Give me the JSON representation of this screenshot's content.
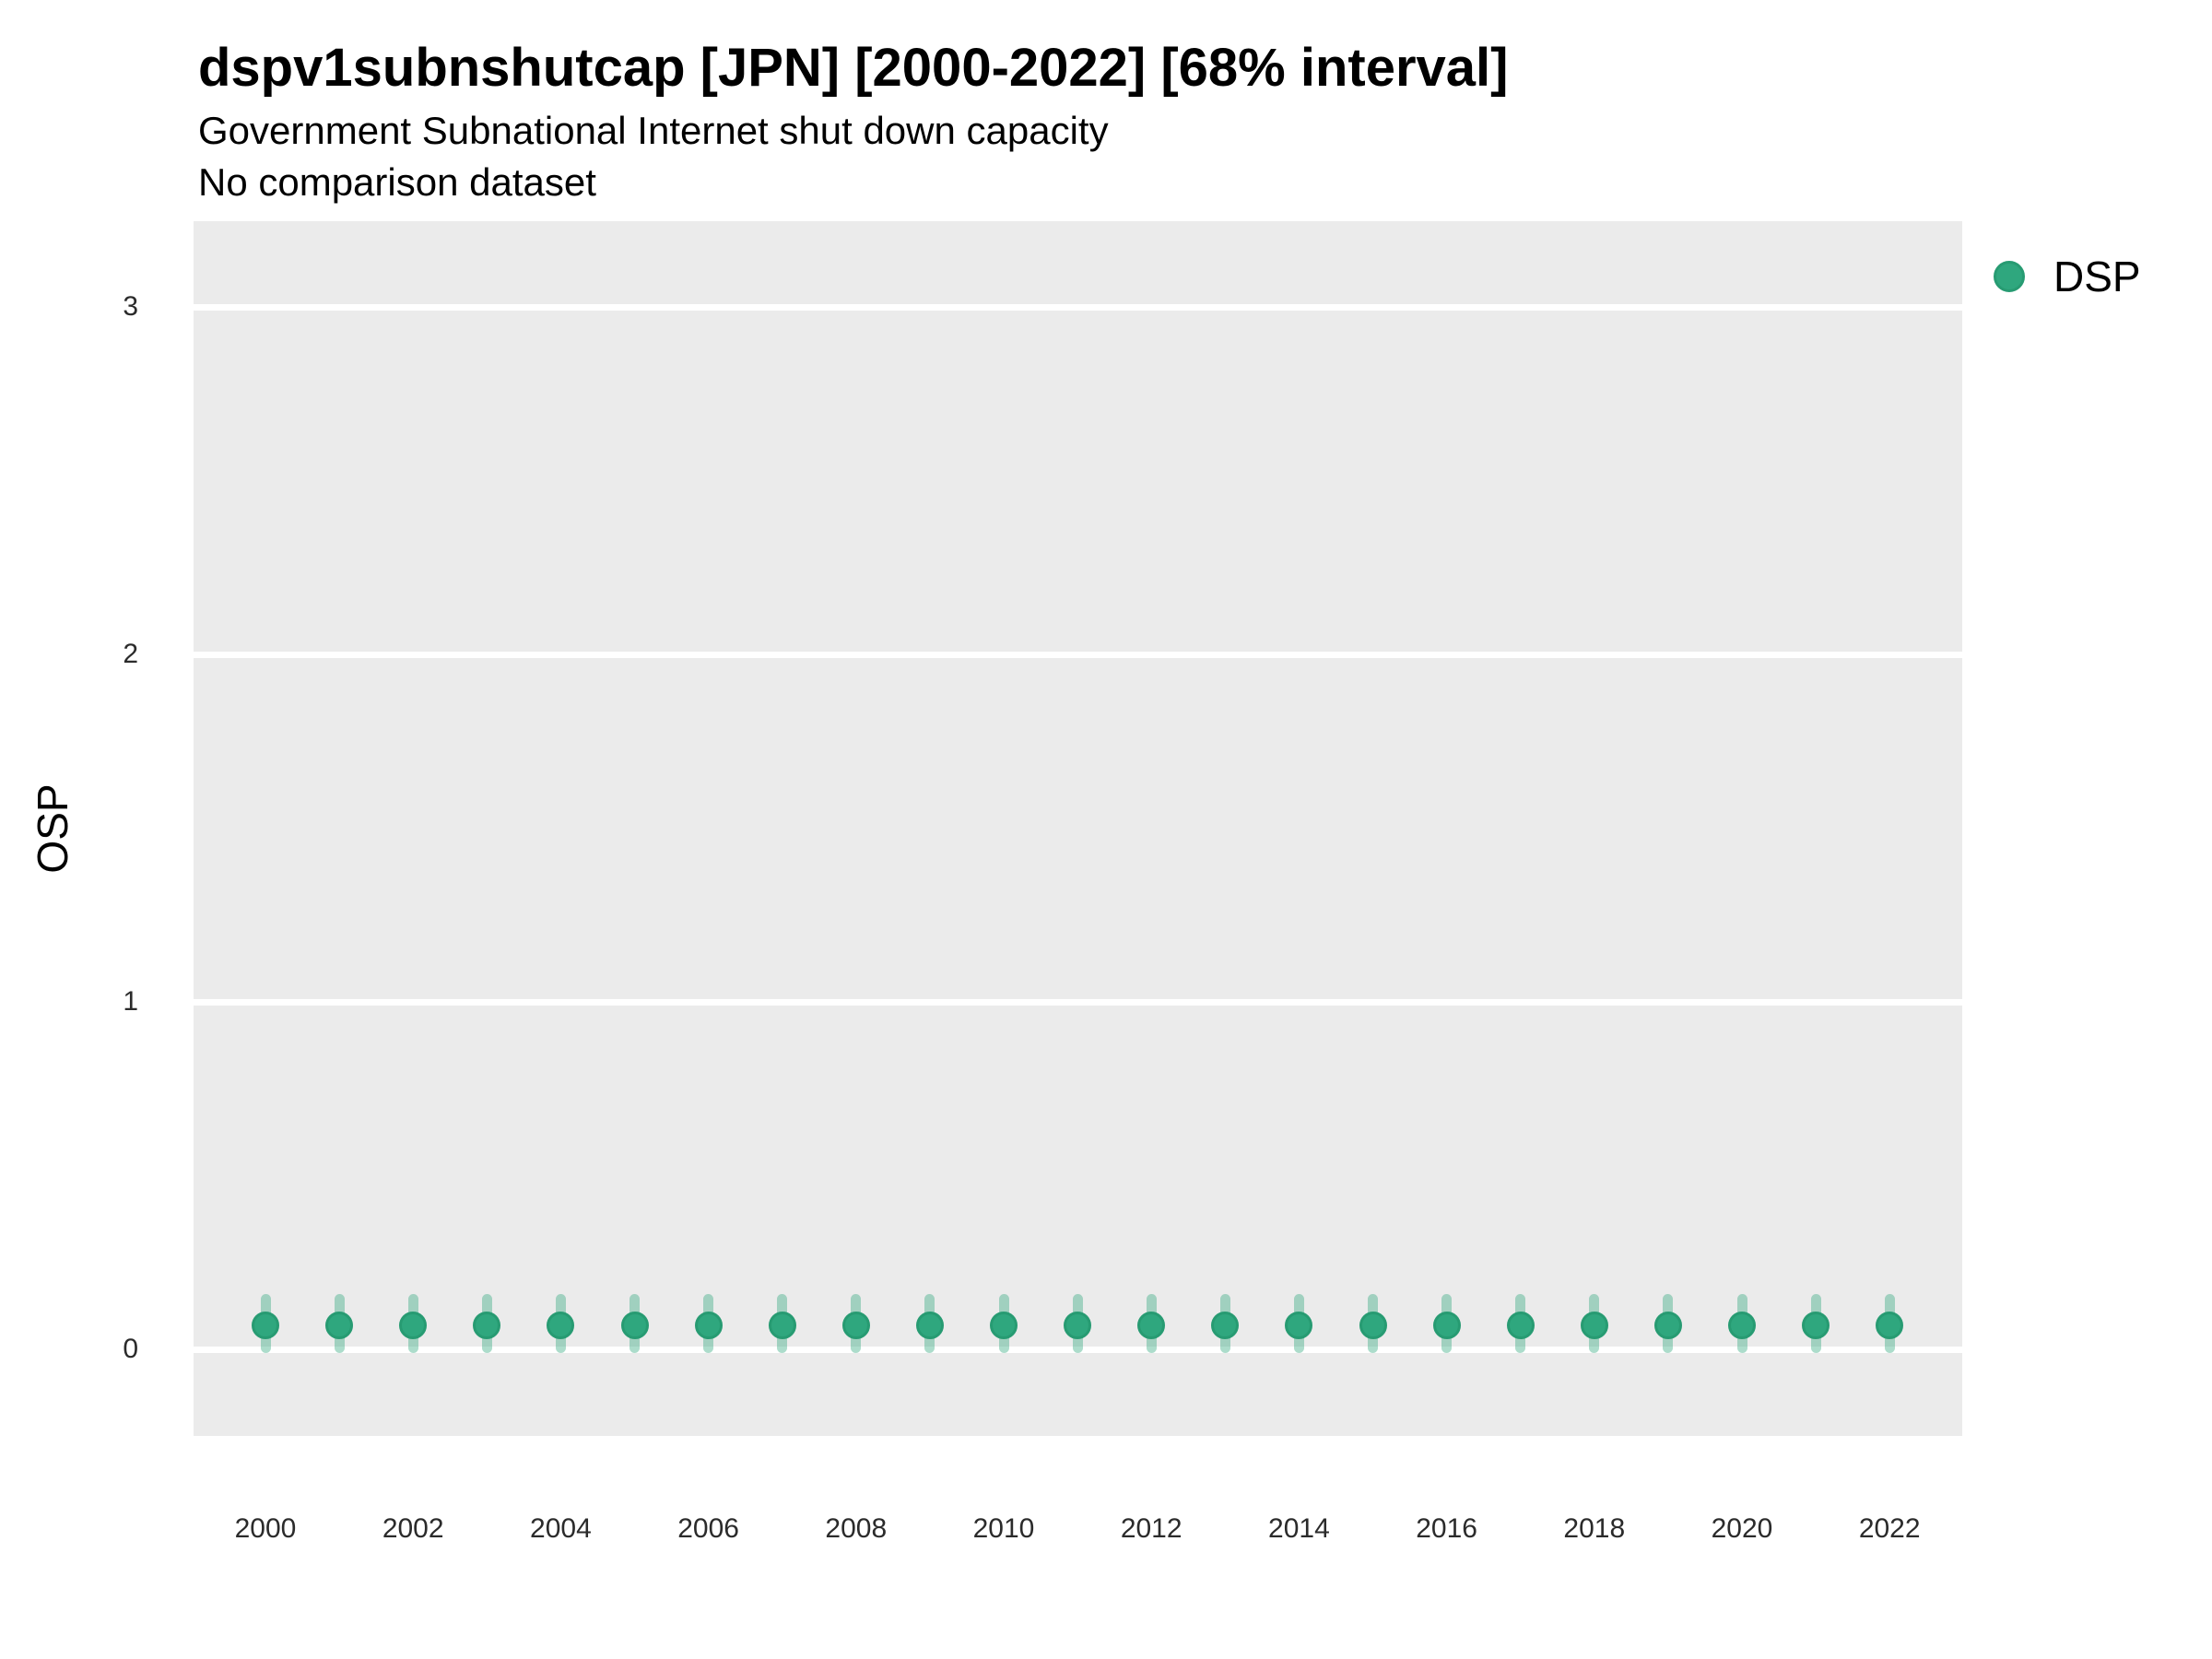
{
  "chart_data": {
    "type": "scatter",
    "subtype": "pointrange",
    "title": "dspv1subnshutcap [JPN] [2000-2022] [68% interval]",
    "subtitle": "Government Subnational Internet shut down capacity",
    "note": "No comparison dataset",
    "xlabel": "",
    "ylabel": "OSP",
    "interval_level": "68%",
    "x_ticks": [
      2000,
      2002,
      2004,
      2006,
      2008,
      2010,
      2012,
      2014,
      2016,
      2018,
      2020,
      2022
    ],
    "y_ticks": [
      0,
      1,
      2,
      3
    ],
    "xlim": [
      1999,
      2023
    ],
    "ylim": [
      -0.25,
      3.25
    ],
    "grid": {
      "horizontal": "major-white",
      "vertical": "none"
    },
    "panel_bg": "#EBEBEB",
    "legend": {
      "position": "right",
      "entries": [
        {
          "label": "DSP",
          "color": "#2FA77E"
        }
      ]
    },
    "series": [
      {
        "name": "DSP",
        "point_color": "#2FA77E",
        "point_border_color": "#279B72",
        "interval_color": "rgba(47,167,126,0.40)",
        "x": [
          2000,
          2001,
          2002,
          2003,
          2004,
          2005,
          2006,
          2007,
          2008,
          2009,
          2010,
          2011,
          2012,
          2013,
          2014,
          2015,
          2016,
          2017,
          2018,
          2019,
          2020,
          2021,
          2022
        ],
        "estimate": [
          0.07,
          0.07,
          0.07,
          0.07,
          0.07,
          0.07,
          0.07,
          0.07,
          0.07,
          0.07,
          0.07,
          0.07,
          0.07,
          0.07,
          0.07,
          0.07,
          0.07,
          0.07,
          0.07,
          0.07,
          0.07,
          0.07,
          0.07
        ],
        "lower": [
          -0.01,
          -0.01,
          -0.01,
          -0.01,
          -0.01,
          -0.01,
          -0.01,
          -0.01,
          -0.01,
          -0.01,
          -0.01,
          -0.01,
          -0.01,
          -0.01,
          -0.01,
          -0.01,
          -0.01,
          -0.01,
          -0.01,
          -0.01,
          -0.01,
          -0.01,
          -0.01
        ],
        "upper": [
          0.16,
          0.16,
          0.16,
          0.16,
          0.16,
          0.16,
          0.16,
          0.16,
          0.16,
          0.16,
          0.16,
          0.16,
          0.16,
          0.16,
          0.16,
          0.16,
          0.16,
          0.16,
          0.16,
          0.16,
          0.16,
          0.16,
          0.16
        ]
      }
    ]
  }
}
